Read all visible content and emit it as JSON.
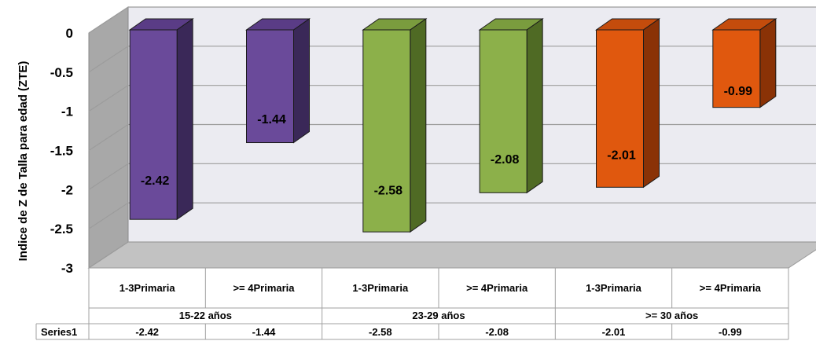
{
  "chart_data": {
    "type": "bar",
    "ylabel": "Indice de Z de Talla para edad (ZTE)",
    "ylim": [
      -3,
      0
    ],
    "yticks": [
      0,
      -0.5,
      -1,
      -1.5,
      -2,
      -2.5,
      -3
    ],
    "yticks_labels": [
      "0",
      "-0.5",
      "-1",
      "-1.5",
      "-2",
      "-2.5",
      "-3"
    ],
    "three_d": true,
    "grid": true,
    "groups": [
      "15-22 años",
      "23-29 años",
      ">= 30 años"
    ],
    "categories": [
      "1-3Primaria",
      ">= 4Primaria",
      "1-3Primaria",
      ">= 4Primaria",
      "1-3Primaria",
      ">= 4Primaria"
    ],
    "series": [
      {
        "name": "Series1",
        "values": [
          -2.42,
          -1.44,
          -2.58,
          -2.08,
          -2.01,
          -0.99
        ],
        "labels": [
          "-2.42",
          "-1.44",
          "-2.58",
          "-2.08",
          "-2.01",
          "-0.99"
        ]
      }
    ],
    "bar_colors": [
      "#6a4a9a",
      "#6a4a9a",
      "#8cb04a",
      "#8cb04a",
      "#e0580e",
      "#e0580e"
    ],
    "bar_side_colors": [
      "#3a2858",
      "#3a2858",
      "#4f6a24",
      "#4f6a24",
      "#8a3206",
      "#8a3206"
    ],
    "bar_top_colors": [
      "#5a3c86",
      "#5a3c86",
      "#7a9c3e",
      "#7a9c3e",
      "#c44c0c",
      "#c44c0c"
    ]
  }
}
